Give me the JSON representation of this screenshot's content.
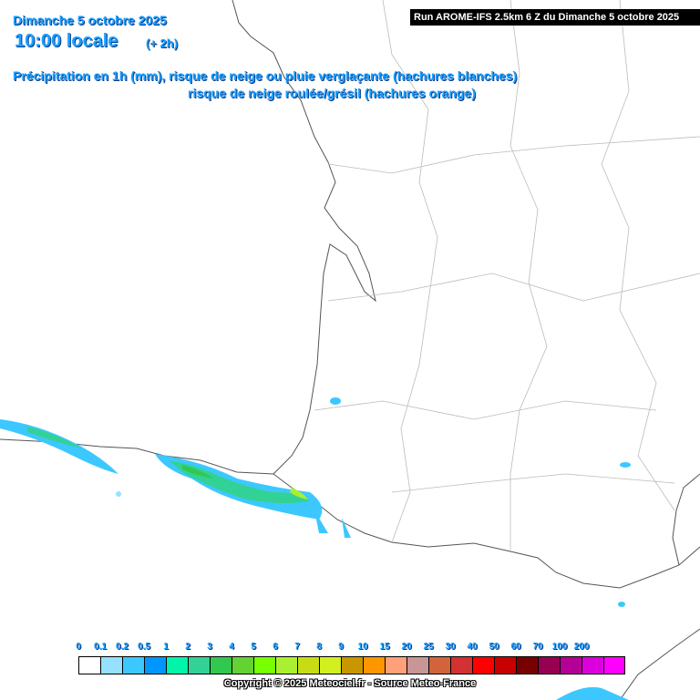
{
  "header": {
    "date": "Dimanche 5 octobre 2025",
    "time": "10:00 locale",
    "offset": "(+ 2h)",
    "subtitle_1": "Précipitation en 1h (mm), risque de neige ou pluie verglaçante (hachures blanches)",
    "subtitle_2": "risque de neige roulée/grésil (hachures orange)",
    "run": "Run AROME-IFS 2.5km 6 Z du Dimanche 5 octobre 2025"
  },
  "legend": {
    "items": [
      {
        "label": "0",
        "color": "#ffffff"
      },
      {
        "label": "0.1",
        "color": "#96e1ff"
      },
      {
        "label": "0.2",
        "color": "#3cc8ff"
      },
      {
        "label": "0.5",
        "color": "#0096ff"
      },
      {
        "label": "1",
        "color": "#00f5aa"
      },
      {
        "label": "2",
        "color": "#32d296"
      },
      {
        "label": "3",
        "color": "#32c850"
      },
      {
        "label": "4",
        "color": "#64d232"
      },
      {
        "label": "5",
        "color": "#78ff00"
      },
      {
        "label": "6",
        "color": "#aaf032"
      },
      {
        "label": "7",
        "color": "#c8dc14"
      },
      {
        "label": "8",
        "color": "#d2f020"
      },
      {
        "label": "9",
        "color": "#c89600"
      },
      {
        "label": "10",
        "color": "#ff9600"
      },
      {
        "label": "15",
        "color": "#ffa078"
      },
      {
        "label": "20",
        "color": "#c89696"
      },
      {
        "label": "25",
        "color": "#d2643c"
      },
      {
        "label": "30",
        "color": "#d23232"
      },
      {
        "label": "40",
        "color": "#ff0000"
      },
      {
        "label": "50",
        "color": "#c80000"
      },
      {
        "label": "60",
        "color": "#780000"
      },
      {
        "label": "70",
        "color": "#960050"
      },
      {
        "label": "100",
        "color": "#b40096"
      },
      {
        "label": "200",
        "color": "#dc00dc"
      }
    ],
    "last_color": "#ff00ff"
  },
  "footer": {
    "copyright": "Copyright © 2025 Meteociel.fr - Source Meteo-France"
  }
}
